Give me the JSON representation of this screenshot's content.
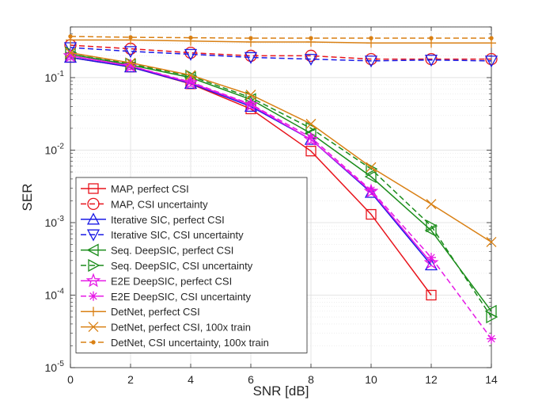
{
  "chart_data": {
    "type": "line",
    "title": "",
    "xlabel": "SNR [dB]",
    "ylabel": "SER",
    "xlim": [
      0,
      14
    ],
    "ylim": [
      1e-05,
      0.5
    ],
    "yscale": "log",
    "grid": true,
    "legend_position": "bottom-left",
    "x_ticks": [
      0,
      2,
      4,
      6,
      8,
      10,
      12,
      14
    ],
    "y_ticks": [
      {
        "value": 1e-05,
        "base": "10",
        "exp": "-5"
      },
      {
        "value": 0.0001,
        "base": "10",
        "exp": "-4"
      },
      {
        "value": 0.001,
        "base": "10",
        "exp": "-3"
      },
      {
        "value": 0.01,
        "base": "10",
        "exp": "-2"
      },
      {
        "value": 0.1,
        "base": "10",
        "exp": "-1"
      }
    ],
    "series": [
      {
        "name": "MAP, perfect CSI",
        "color": "#e8141c",
        "dash": "solid",
        "marker": "square",
        "x": [
          0,
          2,
          4,
          6,
          8,
          10,
          12
        ],
        "y": [
          0.19,
          0.14,
          0.082,
          0.037,
          0.0097,
          0.0013,
          0.0001
        ]
      },
      {
        "name": "MAP, CSI uncertainty",
        "color": "#e8141c",
        "dash": "dashed",
        "marker": "circle",
        "x": [
          0,
          2,
          4,
          6,
          8,
          10,
          12,
          14
        ],
        "y": [
          0.28,
          0.25,
          0.22,
          0.2,
          0.2,
          0.18,
          0.18,
          0.18
        ]
      },
      {
        "name": "Iterative SIC, perfect CSI",
        "color": "#1a1ae6",
        "dash": "solid",
        "marker": "triangle-up",
        "x": [
          0,
          2,
          4,
          6,
          8,
          10,
          12
        ],
        "y": [
          0.19,
          0.14,
          0.083,
          0.04,
          0.014,
          0.0026,
          0.00026
        ]
      },
      {
        "name": "Iterative SIC, CSI uncertainty",
        "color": "#1a1ae6",
        "dash": "dashed",
        "marker": "triangle-down",
        "x": [
          0,
          2,
          4,
          6,
          8,
          10,
          12,
          14
        ],
        "y": [
          0.26,
          0.23,
          0.21,
          0.19,
          0.18,
          0.17,
          0.175,
          0.17
        ]
      },
      {
        "name": "Seq. DeepSIC, perfect CSI",
        "color": "#1a8c1a",
        "dash": "solid",
        "marker": "triangle-left",
        "x": [
          0,
          2,
          4,
          6,
          8,
          10,
          12,
          14
        ],
        "y": [
          0.21,
          0.15,
          0.1,
          0.05,
          0.017,
          0.0043,
          0.00078,
          6e-05
        ]
      },
      {
        "name": "Seq. DeepSIC, CSI uncertainty",
        "color": "#1a8c1a",
        "dash": "dashed",
        "marker": "triangle-right",
        "x": [
          0,
          2,
          4,
          6,
          8,
          10,
          12,
          14
        ],
        "y": [
          0.22,
          0.155,
          0.105,
          0.053,
          0.02,
          0.0055,
          0.0009,
          5e-05
        ]
      },
      {
        "name": "E2E DeepSIC, perfect CSI",
        "color": "#e619e6",
        "dash": "solid",
        "marker": "pentagram",
        "x": [
          0,
          2,
          4,
          6,
          8,
          10,
          12
        ],
        "y": [
          0.2,
          0.145,
          0.085,
          0.042,
          0.014,
          0.0027,
          0.00028
        ]
      },
      {
        "name": "E2E DeepSIC, CSI uncertainty",
        "color": "#e619e6",
        "dash": "dashed",
        "marker": "asterisk",
        "x": [
          0,
          2,
          4,
          6,
          8,
          10,
          12,
          14
        ],
        "y": [
          0.2,
          0.145,
          0.087,
          0.043,
          0.015,
          0.0028,
          0.00033,
          2.5e-05
        ]
      },
      {
        "name": "DetNet, perfect CSI",
        "color": "#d98014",
        "dash": "solid",
        "marker": "plus",
        "x": [
          0,
          2,
          4,
          6,
          8,
          10,
          12,
          14
        ],
        "y": [
          0.33,
          0.33,
          0.32,
          0.31,
          0.31,
          0.3,
          0.3,
          0.3
        ]
      },
      {
        "name": "DetNet, perfect CSI, 100x train",
        "color": "#d98014",
        "dash": "solid",
        "marker": "x",
        "x": [
          0,
          2,
          4,
          6,
          8,
          10,
          12,
          14
        ],
        "y": [
          0.22,
          0.16,
          0.108,
          0.058,
          0.023,
          0.0058,
          0.0018,
          0.00054
        ]
      },
      {
        "name": "DetNet, CSI uncertainty, 100x train",
        "color": "#d98014",
        "dash": "dashed",
        "marker": "dot",
        "x": [
          0,
          2,
          4,
          6,
          8,
          10,
          12,
          14
        ],
        "y": [
          0.37,
          0.36,
          0.355,
          0.35,
          0.35,
          0.35,
          0.35,
          0.35
        ]
      }
    ]
  }
}
